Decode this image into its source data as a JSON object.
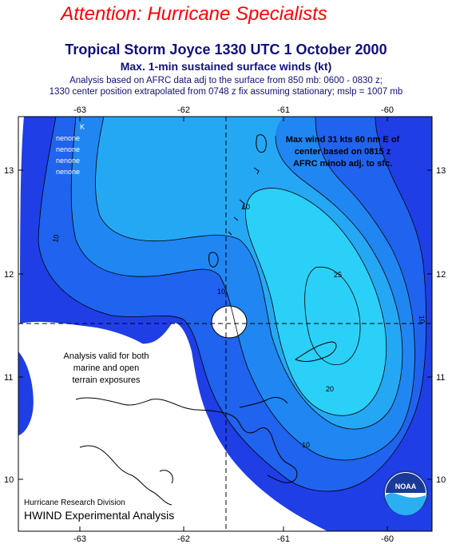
{
  "header": {
    "attention": "Attention:  Hurricane Specialists",
    "title": "Tropical Storm Joyce 1330 UTC 1 October 2000",
    "subtitle": "Max. 1-min sustained surface winds (kt)",
    "analysis_line1": "Analysis based on AFRC data adj to the surface from 850 mb: 0600 - 0830 z;",
    "analysis_line2": "1330  center position extrapolated from 0748 z fix assuming stationary; mslp = 1007 mb"
  },
  "map": {
    "lon_ticks": [
      "-63",
      "-62",
      "-61",
      "-60"
    ],
    "lat_ticks": [
      "13",
      "12",
      "11",
      "10"
    ],
    "center": {
      "lon": -61.55,
      "lat": 11.5
    },
    "lon_range": [
      -63.4,
      -59.75
    ],
    "lat_range": [
      9.55,
      13.45
    ],
    "contour_levels": [
      10,
      20,
      30
    ],
    "contour_labels": [
      "10",
      "10",
      "10",
      "10",
      "20",
      "10",
      "25"
    ],
    "legend_stations": [
      "K",
      "nenone",
      "nenone",
      "nenone",
      "nenone"
    ],
    "colors": {
      "outer": "#1f3ee6",
      "band2": "#1f63ee",
      "band3": "#2086f2",
      "band4": "#25a8f4",
      "band5": "#2ad0f7",
      "land": "#ffffff"
    }
  },
  "annotations": {
    "max_wind": [
      "Max wind 31 kts 60 nm E of",
      "center based on 0815 z",
      "AFRC minob adj. to sfc."
    ],
    "valid": [
      "Analysis valid for both",
      "marine and open",
      "terrain exposures"
    ]
  },
  "footer": {
    "division": "Hurricane Research Division",
    "experimental": "HWIND Experimental Analysis",
    "logo": "NOAA"
  }
}
